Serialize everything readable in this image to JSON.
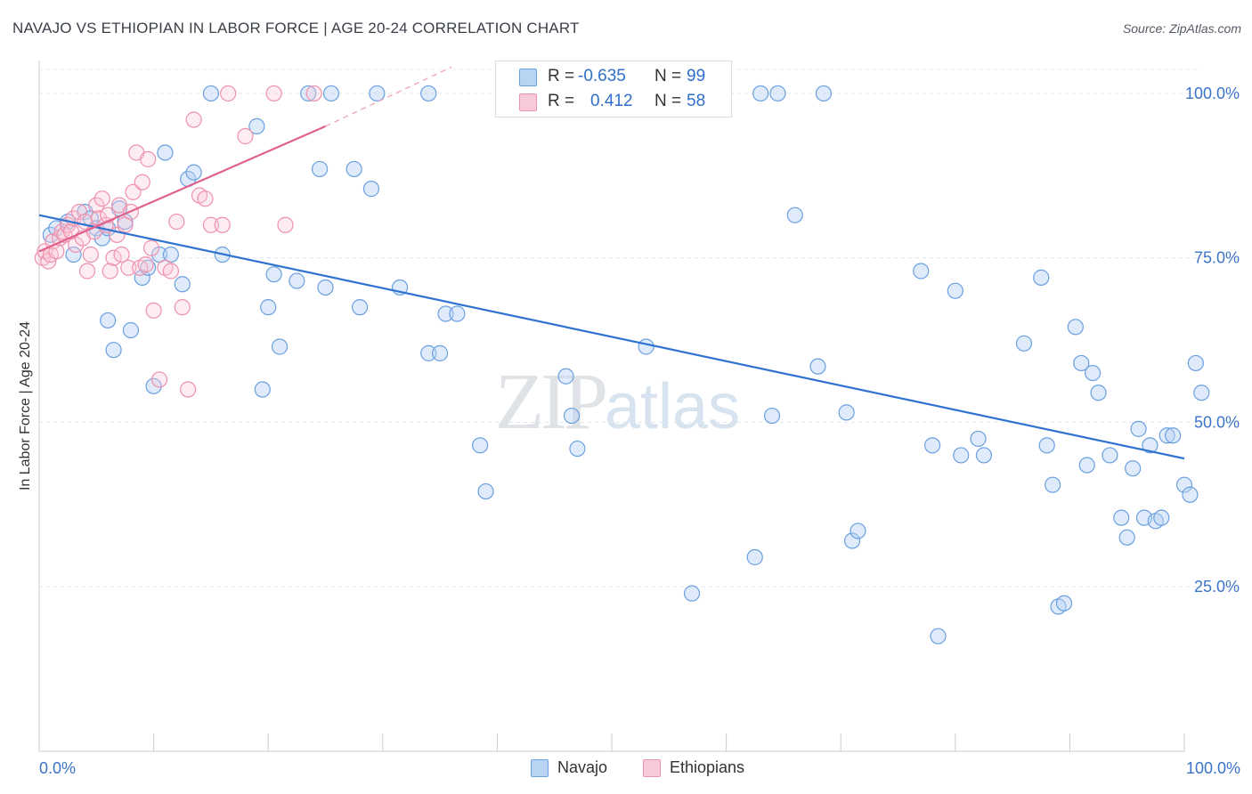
{
  "title": "NAVAJO VS ETHIOPIAN IN LABOR FORCE | AGE 20-24 CORRELATION CHART",
  "source": "Source: ZipAtlas.com",
  "watermark": {
    "zip": "ZIP",
    "atlas": "atlas"
  },
  "legend_top": {
    "navajo": {
      "r_label": "R =",
      "r_value": "-0.635",
      "n_label": "N =",
      "n_value": "99"
    },
    "ethiopians": {
      "r_label": "R =",
      "r_value": "0.412",
      "n_label": "N =",
      "n_value": "58"
    }
  },
  "legend_bottom": {
    "navajo": "Navajo",
    "ethiopians": "Ethiopians"
  },
  "chart_data": {
    "type": "scatter",
    "title": "NAVAJO VS ETHIOPIAN IN LABOR FORCE | AGE 20-24 CORRELATION CHART",
    "xlabel": "",
    "ylabel": "In Labor Force | Age 20-24",
    "xlim": [
      0,
      100
    ],
    "ylim": [
      0,
      105
    ],
    "x_tick_labels": [
      "0.0%",
      "100.0%"
    ],
    "y_tick_labels": [
      "25.0%",
      "50.0%",
      "75.0%",
      "100.0%"
    ],
    "y_ticks": [
      25,
      50,
      75,
      100
    ],
    "grid": true,
    "colors": {
      "navajo": "#6a9fe0",
      "navajo_line": "#2f72cf",
      "ethiopians": "#ee91ad",
      "ethiopians_line": "#e0628c",
      "tick_label": "#3a74c8"
    },
    "series": [
      {
        "name": "Navajo",
        "trend": {
          "x": [
            0,
            100
          ],
          "y": [
            81.5,
            44.5
          ]
        },
        "points": [
          [
            1,
            78.5
          ],
          [
            1.5,
            79.5
          ],
          [
            2.5,
            80.5
          ],
          [
            3,
            75.5
          ],
          [
            4,
            82
          ],
          [
            4.5,
            81
          ],
          [
            5,
            79.5
          ],
          [
            5.5,
            78
          ],
          [
            6,
            79.5
          ],
          [
            7,
            82.5
          ],
          [
            7.5,
            80.5
          ],
          [
            6,
            65.5
          ],
          [
            8,
            64
          ],
          [
            6.5,
            61
          ],
          [
            9,
            72
          ],
          [
            9.5,
            73.5
          ],
          [
            10,
            55.5
          ],
          [
            10.5,
            75.5
          ],
          [
            11,
            91
          ],
          [
            11.5,
            75.5
          ],
          [
            12.5,
            71
          ],
          [
            13,
            87
          ],
          [
            13.5,
            88
          ],
          [
            16,
            75.5
          ],
          [
            15,
            100
          ],
          [
            19,
            95
          ],
          [
            19.5,
            55
          ],
          [
            20,
            67.5
          ],
          [
            20.5,
            72.5
          ],
          [
            21,
            61.5
          ],
          [
            22.5,
            71.5
          ],
          [
            23.5,
            100
          ],
          [
            24.5,
            88.5
          ],
          [
            25,
            70.5
          ],
          [
            25.5,
            100
          ],
          [
            27.5,
            88.5
          ],
          [
            28,
            67.5
          ],
          [
            29,
            85.5
          ],
          [
            29.5,
            100
          ],
          [
            31.5,
            70.5
          ],
          [
            34,
            100
          ],
          [
            34,
            60.5
          ],
          [
            35,
            60.5
          ],
          [
            35.5,
            66.5
          ],
          [
            36.5,
            66.5
          ],
          [
            38.5,
            46.5
          ],
          [
            39,
            39.5
          ],
          [
            46,
            57
          ],
          [
            46.5,
            51
          ],
          [
            47,
            46
          ],
          [
            53,
            61.5
          ],
          [
            55.5,
            100
          ],
          [
            57,
            24
          ],
          [
            62.5,
            29.5
          ],
          [
            63,
            100
          ],
          [
            64.5,
            100
          ],
          [
            64,
            51
          ],
          [
            66,
            81.5
          ],
          [
            68,
            58.5
          ],
          [
            68.5,
            100
          ],
          [
            70.5,
            51.5
          ],
          [
            71,
            32
          ],
          [
            71.5,
            33.5
          ],
          [
            77,
            73
          ],
          [
            78,
            46.5
          ],
          [
            78.5,
            17.5
          ],
          [
            80,
            70
          ],
          [
            80.5,
            45
          ],
          [
            82,
            47.5
          ],
          [
            82.5,
            45
          ],
          [
            86,
            62
          ],
          [
            87.5,
            72
          ],
          [
            88,
            46.5
          ],
          [
            88.5,
            40.5
          ],
          [
            89,
            22
          ],
          [
            89.5,
            22.5
          ],
          [
            90.5,
            64.5
          ],
          [
            91,
            59
          ],
          [
            91.5,
            43.5
          ],
          [
            92,
            57.5
          ],
          [
            92.5,
            54.5
          ],
          [
            93.5,
            45
          ],
          [
            94.5,
            35.5
          ],
          [
            95,
            32.5
          ],
          [
            95.5,
            43
          ],
          [
            96,
            49
          ],
          [
            96.5,
            35.5
          ],
          [
            97,
            46.5
          ],
          [
            97.5,
            35
          ],
          [
            98,
            35.5
          ],
          [
            98.5,
            48
          ],
          [
            99,
            48
          ],
          [
            100,
            40.5
          ],
          [
            100.5,
            39
          ],
          [
            101,
            59
          ],
          [
            101.5,
            54.5
          ]
        ]
      },
      {
        "name": "Ethiopians",
        "trend": {
          "x": [
            0,
            25
          ],
          "y": [
            76,
            95
          ],
          "dashed_x": [
            25,
            36
          ],
          "dashed_y": [
            95,
            104
          ]
        },
        "points": [
          [
            0.3,
            75
          ],
          [
            0.5,
            76
          ],
          [
            0.8,
            74.5
          ],
          [
            1,
            75.5
          ],
          [
            1.2,
            77.5
          ],
          [
            1.5,
            76
          ],
          [
            1.8,
            78
          ],
          [
            2,
            79
          ],
          [
            2.2,
            78.5
          ],
          [
            2.5,
            80
          ],
          [
            2.8,
            79
          ],
          [
            3,
            81
          ],
          [
            3.2,
            77
          ],
          [
            3.5,
            82
          ],
          [
            3.8,
            78
          ],
          [
            4,
            80.5
          ],
          [
            4.2,
            73
          ],
          [
            4.5,
            75.5
          ],
          [
            4.8,
            79
          ],
          [
            5,
            83
          ],
          [
            5.2,
            81
          ],
          [
            5.5,
            84
          ],
          [
            5.8,
            80
          ],
          [
            6,
            81.5
          ],
          [
            6.2,
            73
          ],
          [
            6.5,
            75
          ],
          [
            6.8,
            78.5
          ],
          [
            7,
            83
          ],
          [
            7.2,
            75.5
          ],
          [
            7.5,
            80
          ],
          [
            7.8,
            73.5
          ],
          [
            8,
            82
          ],
          [
            8.2,
            85
          ],
          [
            8.5,
            91
          ],
          [
            8.8,
            73.5
          ],
          [
            9,
            86.5
          ],
          [
            9.3,
            74
          ],
          [
            9.5,
            90
          ],
          [
            9.8,
            76.5
          ],
          [
            10,
            67
          ],
          [
            10.5,
            56.5
          ],
          [
            11,
            73.5
          ],
          [
            11.5,
            73
          ],
          [
            12,
            80.5
          ],
          [
            12.5,
            67.5
          ],
          [
            13,
            55
          ],
          [
            13.5,
            96
          ],
          [
            14,
            84.5
          ],
          [
            14.5,
            84
          ],
          [
            15,
            80
          ],
          [
            16,
            80
          ],
          [
            16.5,
            100
          ],
          [
            18,
            93.5
          ],
          [
            20.5,
            100
          ],
          [
            21.5,
            80
          ],
          [
            24,
            100
          ]
        ]
      }
    ]
  }
}
